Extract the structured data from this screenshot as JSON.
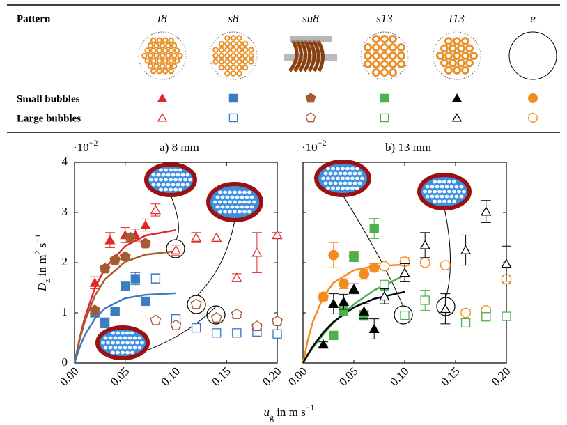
{
  "legend": {
    "header": "Pattern",
    "patterns": [
      {
        "label": "t8",
        "color": "#e0282b",
        "marker": "triangle"
      },
      {
        "label": "s8",
        "color": "#3b7dc0",
        "marker": "square"
      },
      {
        "label": "su8",
        "color": "#a65a32",
        "marker": "pentagon"
      },
      {
        "label": "s13",
        "color": "#4cb050",
        "marker": "square"
      },
      {
        "label": "t13",
        "color": "#000000",
        "marker": "triangle"
      },
      {
        "label": "e",
        "color": "#f58a1f",
        "marker": "circle"
      }
    ],
    "rows": [
      "Small bubbles",
      "Large bubbles"
    ]
  },
  "xlabel": [
    {
      "t": "u"
    },
    {
      "t": "g",
      "shift": "sub"
    },
    {
      "t": " in m s"
    },
    {
      "t": "−1",
      "shift": "super"
    }
  ],
  "chart_data": [
    {
      "type": "scatter",
      "title": "a) 8 mm",
      "y_multiplier": {
        "base": "·10",
        "exponent": "−2"
      },
      "ylabel": [
        {
          "t": "D"
        },
        {
          "t": "z",
          "shift": "sub"
        },
        {
          "t": " in m"
        },
        {
          "t": "2",
          "shift": "super"
        },
        {
          "t": " s"
        },
        {
          "t": "−1",
          "shift": "super"
        }
      ],
      "xlim": [
        0,
        0.2
      ],
      "ylim": [
        0,
        4
      ],
      "xticks": [
        {
          "value": 0,
          "label": "0.00"
        },
        {
          "value": 0.05,
          "label": "0.05"
        },
        {
          "value": 0.1,
          "label": "0.10"
        },
        {
          "value": 0.15,
          "label": "0.15"
        },
        {
          "value": 0.2,
          "label": "0.20"
        }
      ],
      "yticks": [
        0,
        1,
        2,
        3,
        4
      ],
      "ytick_labels": true,
      "series": [
        {
          "color": "#e0282b",
          "marker": "triangle",
          "filled": true,
          "x": [
            0.02,
            0.035,
            0.05,
            0.06,
            0.07
          ],
          "values": [
            1.6,
            2.45,
            2.55,
            2.55,
            2.75
          ],
          "errors": [
            0.12,
            0.15,
            0.15,
            0.12,
            0.12
          ]
        },
        {
          "color": "#e0282b",
          "marker": "triangle",
          "filled": false,
          "x": [
            0.08,
            0.1,
            0.12,
            0.14,
            0.16,
            0.18,
            0.2
          ],
          "values": [
            3.05,
            2.25,
            2.5,
            2.5,
            1.7,
            2.2,
            2.55
          ],
          "errors": [
            0.12,
            0.1,
            0.1,
            0.05,
            0.08,
            0.4,
            0.05
          ]
        },
        {
          "color": "#3b7dc0",
          "marker": "square",
          "filled": true,
          "x": [
            0.02,
            0.03,
            0.04,
            0.05,
            0.06,
            0.07
          ],
          "values": [
            1.0,
            0.8,
            1.03,
            1.53,
            1.68,
            1.23
          ],
          "errors": [
            0.08,
            0.1,
            0.06,
            0.08,
            0.12,
            0.06
          ]
        },
        {
          "color": "#3b7dc0",
          "marker": "square",
          "filled": false,
          "x": [
            0.08,
            0.1,
            0.12,
            0.14,
            0.16,
            0.18,
            0.2
          ],
          "values": [
            1.68,
            0.88,
            0.7,
            0.6,
            0.6,
            0.62,
            0.58
          ],
          "errors": [
            0.1,
            0.06,
            0.05,
            0.05,
            0.04,
            0.05,
            0.04
          ]
        },
        {
          "color": "#a65a32",
          "marker": "pentagon",
          "filled": true,
          "x": [
            0.02,
            0.03,
            0.04,
            0.05,
            0.055,
            0.07
          ],
          "values": [
            1.05,
            1.88,
            2.05,
            2.12,
            2.5,
            2.38
          ],
          "errors": [
            0.06,
            0.06,
            0.06,
            0.05,
            0.08,
            0.06
          ]
        },
        {
          "color": "#a65a32",
          "marker": "pentagon",
          "filled": false,
          "x": [
            0.08,
            0.1,
            0.12,
            0.14,
            0.16,
            0.18,
            0.2
          ],
          "values": [
            0.85,
            0.75,
            1.17,
            0.9,
            0.97,
            0.73,
            0.83
          ],
          "errors": [
            0.05,
            0.05,
            0.06,
            0.05,
            0.06,
            0.05,
            0.05
          ]
        }
      ],
      "fits": [
        {
          "color": "#e0282b",
          "x": [
            0,
            0.005,
            0.01,
            0.02,
            0.03,
            0.05,
            0.07,
            0.1
          ],
          "values": [
            0,
            0.49,
            0.89,
            1.49,
            1.89,
            2.33,
            2.54,
            2.65
          ]
        },
        {
          "color": "#a65a32",
          "x": [
            0,
            0.005,
            0.01,
            0.02,
            0.03,
            0.05,
            0.07,
            0.1
          ],
          "values": [
            0,
            0.46,
            0.82,
            1.34,
            1.67,
            2.02,
            2.16,
            2.23
          ]
        },
        {
          "color": "#3b7dc0",
          "x": [
            0,
            0.005,
            0.01,
            0.02,
            0.03,
            0.05,
            0.07,
            0.1
          ],
          "values": [
            0,
            0.31,
            0.55,
            0.88,
            1.09,
            1.29,
            1.36,
            1.39
          ]
        }
      ]
    },
    {
      "type": "scatter",
      "title": "b) 13 mm",
      "y_multiplier": {
        "base": "·10",
        "exponent": "−2"
      },
      "xlim": [
        0,
        0.2
      ],
      "ylim": [
        0,
        4
      ],
      "xticks": [
        {
          "value": 0,
          "label": "0.00"
        },
        {
          "value": 0.05,
          "label": "0.05"
        },
        {
          "value": 0.1,
          "label": "0.10"
        },
        {
          "value": 0.15,
          "label": "0.15"
        },
        {
          "value": 0.2,
          "label": "0.20"
        }
      ],
      "yticks": [
        0,
        1,
        2,
        3,
        4
      ],
      "ytick_labels": false,
      "series": [
        {
          "color": "#f58a1f",
          "marker": "circle",
          "filled": true,
          "x": [
            0.02,
            0.03,
            0.04,
            0.05,
            0.06,
            0.07
          ],
          "values": [
            1.32,
            2.15,
            1.58,
            2.13,
            1.77,
            1.9
          ],
          "errors": [
            0.08,
            0.25,
            0.1,
            0.1,
            0.1,
            0.08
          ]
        },
        {
          "color": "#f58a1f",
          "marker": "circle",
          "filled": false,
          "x": [
            0.08,
            0.1,
            0.12,
            0.14,
            0.16,
            0.18,
            0.2
          ],
          "values": [
            1.93,
            2.02,
            2.0,
            1.95,
            1.0,
            1.05,
            1.67
          ],
          "errors": [
            0.06,
            0.08,
            0.06,
            0.05,
            0.06,
            0.06,
            0.08
          ]
        },
        {
          "color": "#4cb050",
          "marker": "square",
          "filled": true,
          "x": [
            0.03,
            0.04,
            0.05,
            0.06,
            0.07
          ],
          "values": [
            0.55,
            1.05,
            2.12,
            0.95,
            2.68
          ],
          "errors": [
            0.06,
            0.1,
            0.1,
            0.1,
            0.2
          ]
        },
        {
          "color": "#4cb050",
          "marker": "square",
          "filled": false,
          "x": [
            0.08,
            0.1,
            0.12,
            0.16,
            0.18,
            0.2
          ],
          "values": [
            1.55,
            0.95,
            1.25,
            0.8,
            0.92,
            0.93
          ],
          "errors": [
            0.1,
            0.06,
            0.2,
            0.08,
            0.06,
            0.05
          ]
        },
        {
          "color": "#000000",
          "marker": "triangle",
          "filled": true,
          "x": [
            0.02,
            0.03,
            0.04,
            0.05,
            0.06,
            0.07
          ],
          "values": [
            0.37,
            1.18,
            1.22,
            1.48,
            1.03,
            0.68
          ],
          "errors": [
            0.05,
            0.2,
            0.15,
            0.1,
            0.15,
            0.2
          ]
        },
        {
          "color": "#000000",
          "marker": "triangle",
          "filled": false,
          "x": [
            0.08,
            0.1,
            0.12,
            0.14,
            0.16,
            0.18,
            0.2
          ],
          "values": [
            1.33,
            1.8,
            2.35,
            1.08,
            2.25,
            3.02,
            1.98
          ],
          "errors": [
            0.15,
            0.18,
            0.25,
            0.3,
            0.3,
            0.22,
            0.35
          ]
        }
      ],
      "fits": [
        {
          "color": "#f58a1f",
          "x": [
            0,
            0.005,
            0.01,
            0.02,
            0.03,
            0.05,
            0.07,
            0.1
          ],
          "values": [
            0,
            0.48,
            0.84,
            1.32,
            1.6,
            1.85,
            1.93,
            1.96
          ]
        },
        {
          "color": "#4cb050",
          "x": [
            0,
            0.005,
            0.01,
            0.02,
            0.03,
            0.05,
            0.07,
            0.1
          ],
          "values": [
            0,
            0.16,
            0.31,
            0.57,
            0.8,
            1.17,
            1.45,
            1.75
          ]
        },
        {
          "color": "#000000",
          "x": [
            0,
            0.005,
            0.01,
            0.02,
            0.03,
            0.05,
            0.07,
            0.1
          ],
          "values": [
            0,
            0.18,
            0.34,
            0.61,
            0.82,
            1.11,
            1.28,
            1.42
          ]
        }
      ]
    }
  ]
}
